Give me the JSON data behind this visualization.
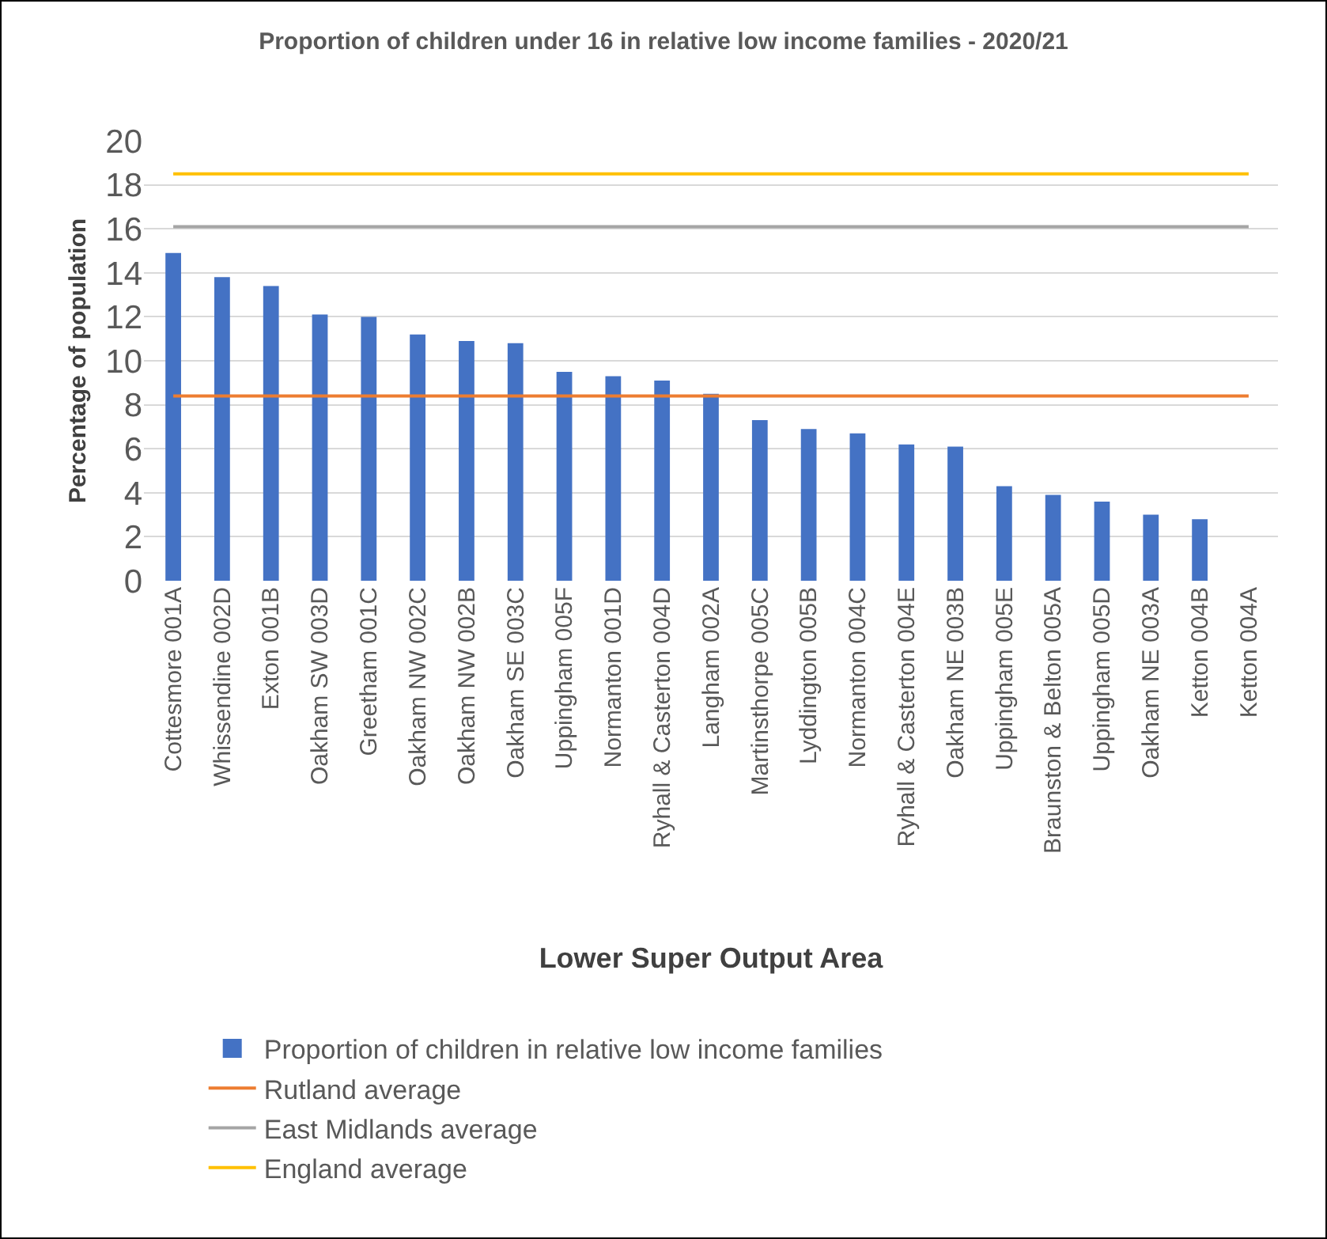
{
  "chart_data": {
    "type": "bar",
    "title": "Proportion of children under 16 in relative low income families - 2020/21",
    "xlabel": "Lower Super Output Area",
    "ylabel": "Percentage of population",
    "categories": [
      "Cottesmore 001A",
      "Whissendine 002D",
      "Exton 001B",
      "Oakham SW 003D",
      "Greetham 001C",
      "Oakham NW 002C",
      "Oakham NW 002B",
      "Oakham SE 003C",
      "Uppingham 005F",
      "Normanton 001D",
      "Ryhall & Casterton 004D",
      "Langham 002A",
      "Martinsthorpe 005C",
      "Lyddington 005B",
      "Normanton 004C",
      "Ryhall & Casterton 004E",
      "Oakham NE 003B",
      "Uppingham 005E",
      "Braunston & Belton 005A",
      "Uppingham 005D",
      "Oakham NE 003A",
      "Ketton 004B",
      "Ketton 004A"
    ],
    "series": [
      {
        "name": "Proportion of children in relative low income families",
        "color": "#4472c4",
        "values": [
          14.9,
          13.8,
          13.4,
          12.1,
          12.0,
          11.2,
          10.9,
          10.8,
          9.5,
          9.3,
          9.1,
          8.5,
          7.3,
          6.9,
          6.7,
          6.2,
          6.1,
          4.3,
          3.9,
          3.6,
          3.0,
          2.8,
          null
        ]
      },
      {
        "name": "Rutland average",
        "type": "line",
        "color": "#ed7d31",
        "values": [
          8.4,
          8.4,
          8.4,
          8.4,
          8.4,
          8.4,
          8.4,
          8.4,
          8.4,
          8.4,
          8.4,
          8.4,
          8.4,
          8.4,
          8.4,
          8.4,
          8.4,
          8.4,
          8.4,
          8.4,
          8.4,
          8.4,
          8.4
        ]
      },
      {
        "name": "East Midlands average",
        "type": "line",
        "color": "#a5a5a5",
        "values": [
          16.1,
          16.1,
          16.1,
          16.1,
          16.1,
          16.1,
          16.1,
          16.1,
          16.1,
          16.1,
          16.1,
          16.1,
          16.1,
          16.1,
          16.1,
          16.1,
          16.1,
          16.1,
          16.1,
          16.1,
          16.1,
          16.1,
          16.1
        ]
      },
      {
        "name": "England average",
        "type": "line",
        "color": "#ffc000",
        "values": [
          18.5,
          18.5,
          18.5,
          18.5,
          18.5,
          18.5,
          18.5,
          18.5,
          18.5,
          18.5,
          18.5,
          18.5,
          18.5,
          18.5,
          18.5,
          18.5,
          18.5,
          18.5,
          18.5,
          18.5,
          18.5,
          18.5,
          18.5
        ]
      }
    ],
    "ylim": [
      0,
      20
    ],
    "yticks": [
      0,
      2,
      4,
      6,
      8,
      10,
      12,
      14,
      16,
      18,
      20
    ],
    "grid": "y",
    "legend": "bottom",
    "marker": "none",
    "line_style": "solid"
  }
}
